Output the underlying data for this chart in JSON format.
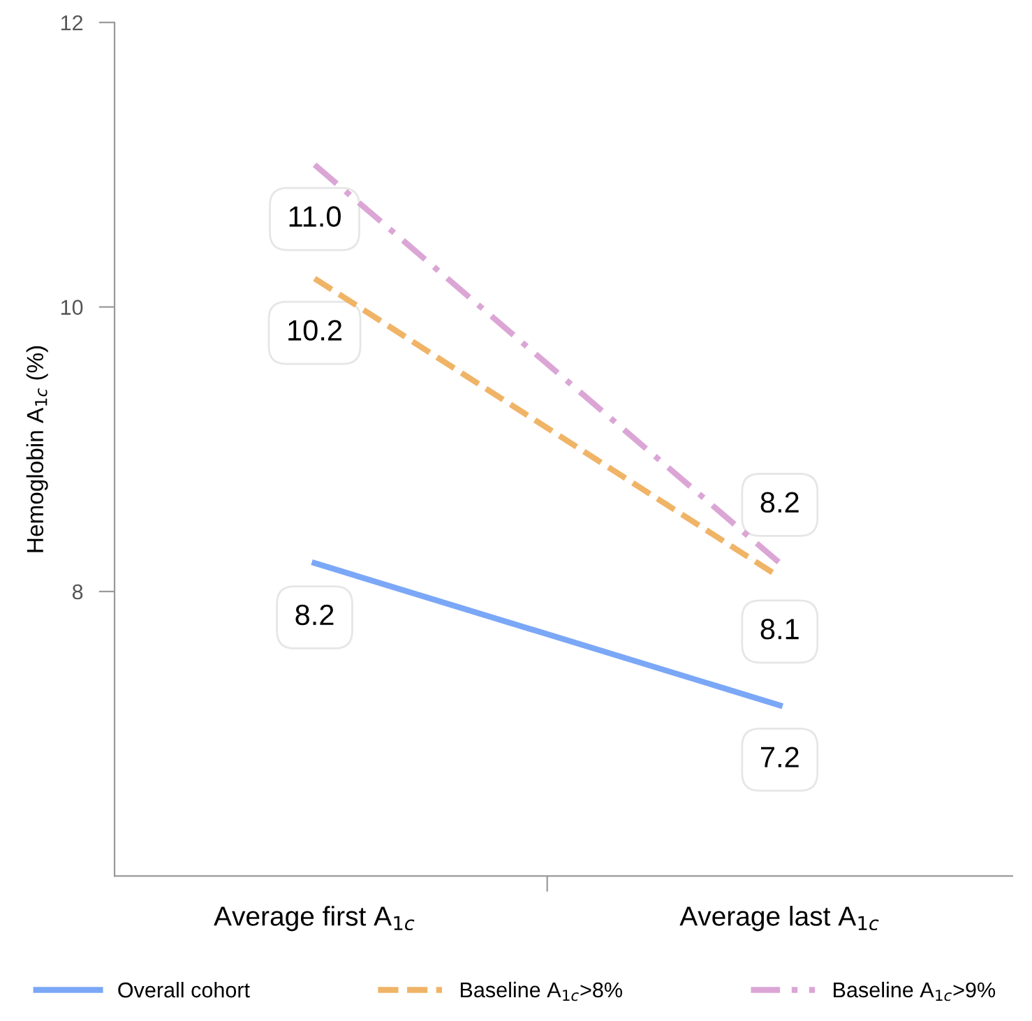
{
  "chart_data": {
    "type": "line",
    "ylabel": "Hemoglobin A$_{1c}$ (%)",
    "categories": [
      "Average first A$_{1c}$",
      "Average last A$_{1c}$"
    ],
    "series": [
      {
        "name": "Overall cohort",
        "color": "#7ba7f7",
        "values": [
          8.2,
          7.2
        ],
        "value_labels": [
          "8.2",
          "7.2"
        ],
        "line_style": "solid"
      },
      {
        "name": "Baseline A$_{1c}$>8%",
        "color": "#f0b467",
        "values": [
          10.2,
          8.1
        ],
        "value_labels": [
          "10.2",
          "8.1"
        ],
        "line_style": "dashed"
      },
      {
        "name": "Baseline A$_{1c}$>9%",
        "color": "#dba6d6",
        "values": [
          11.0,
          8.2
        ],
        "value_labels": [
          "11.0",
          "8.2"
        ],
        "line_style": "dashdot"
      }
    ],
    "ylim": [
      6,
      12
    ],
    "yticks": [
      8,
      10,
      12
    ],
    "grid": false,
    "legend": "bottom",
    "marker": "none"
  }
}
